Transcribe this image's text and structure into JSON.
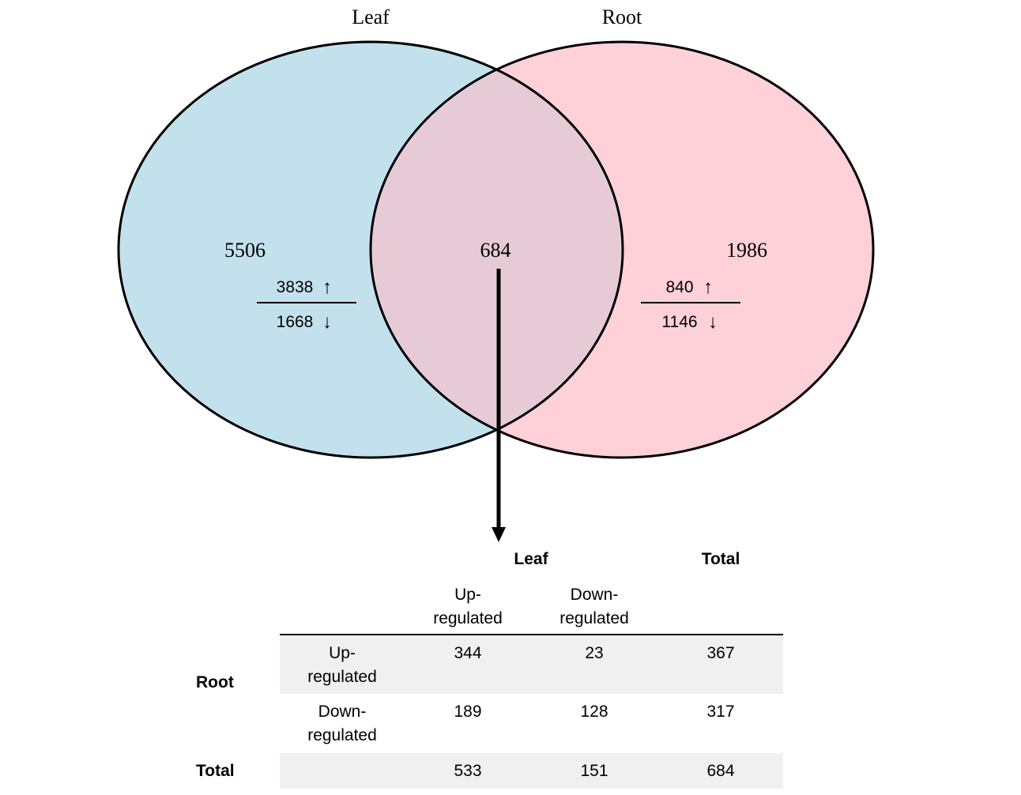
{
  "venn": {
    "sets": [
      {
        "name": "Leaf",
        "color": "#c2e1ec",
        "only_total": "5506",
        "up": "3838",
        "down": "1668"
      },
      {
        "name": "Root",
        "color": "#fed0d8",
        "only_total": "1986",
        "up": "840",
        "down": "1146"
      }
    ],
    "intersection": {
      "value": "684",
      "color": "#e6cbd6"
    },
    "up_arrow": "↑",
    "down_arrow": "↓"
  },
  "table": {
    "col_group_header": "Leaf",
    "total_header": "Total",
    "col_headers": [
      "Up-\nregulated",
      "Down-\nregulated"
    ],
    "row_group_header": "Root",
    "rows": [
      {
        "label": "Up-\nregulated",
        "values": [
          "344",
          "23",
          "367"
        ]
      },
      {
        "label": "Down-\nregulated",
        "values": [
          "189",
          "128",
          "317"
        ]
      }
    ],
    "total_row": {
      "label": "Total",
      "values": [
        "533",
        "151",
        "684"
      ]
    }
  }
}
